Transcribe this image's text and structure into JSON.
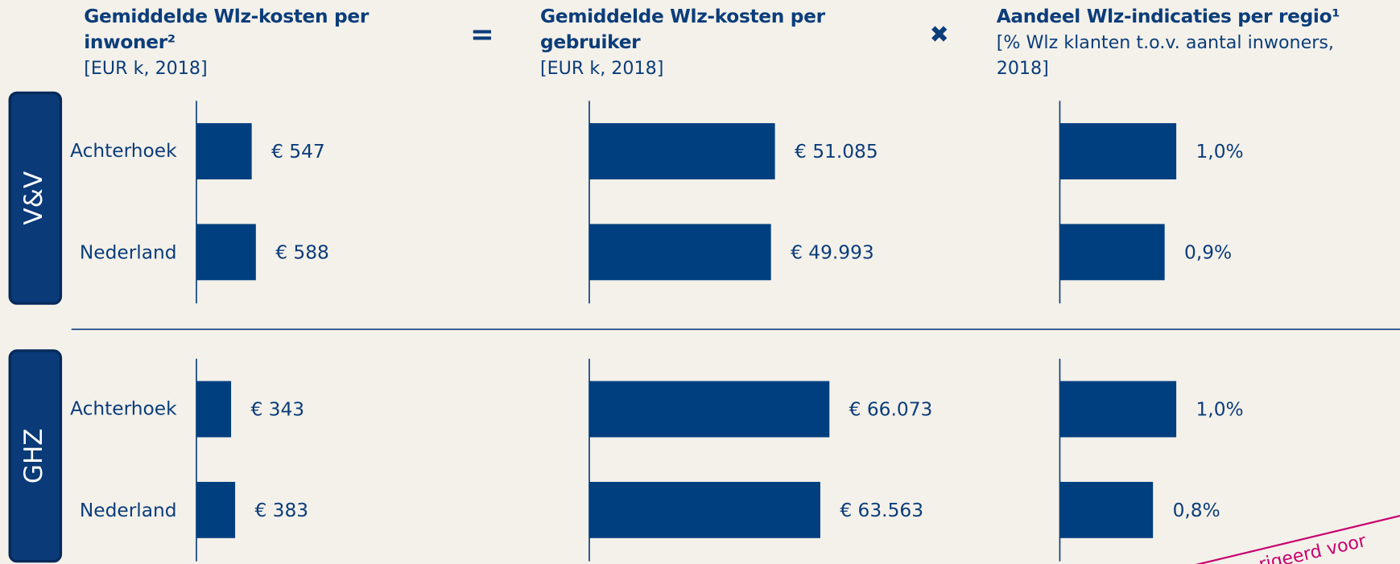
{
  "columns": [
    {
      "title": "Gemiddelde Wlz-kosten per inwoner²",
      "subtitle": "[EUR k, 2018]"
    },
    {
      "title": "Gemiddelde Wlz-kosten per gebruiker",
      "subtitle": "[EUR k, 2018]"
    },
    {
      "title": "Aandeel Wlz-indicaties per regio¹",
      "subtitle": "[% Wlz klanten t.o.v. aantal inwoners, 2018]"
    }
  ],
  "operators": [
    "=",
    "✖"
  ],
  "rows": [
    {
      "label": "V&V",
      "categories": [
        "Achterhoek",
        "Nederland"
      ]
    },
    {
      "label": "GHZ",
      "categories": [
        "Achterhoek",
        "Nederland"
      ]
    }
  ],
  "stamp": "rigeerd voor",
  "chart_data": [
    {
      "type": "bar",
      "values": [
        547,
        588
      ],
      "value_labels": [
        "€ 547",
        "€ 588"
      ],
      "xlim": [
        0,
        2650
      ],
      "color": "#003f7f"
    },
    {
      "type": "bar",
      "values": [
        51085,
        49993
      ],
      "value_labels": [
        "€ 51.085",
        "€ 49.993"
      ],
      "xlim": [
        0,
        73700
      ],
      "color": "#003f7f"
    },
    {
      "type": "bar",
      "values": [
        1.0,
        0.9
      ],
      "value_labels": [
        "1,0%",
        "0,9%"
      ],
      "xlim": [
        0,
        2.3
      ],
      "color": "#003f7f"
    },
    {
      "type": "bar",
      "values": [
        343,
        383
      ],
      "value_labels": [
        "€ 343",
        "€ 383"
      ],
      "xlim": [
        0,
        2650
      ],
      "color": "#003f7f"
    },
    {
      "type": "bar",
      "values": [
        66073,
        63563
      ],
      "value_labels": [
        "€ 66.073",
        "€ 63.563"
      ],
      "xlim": [
        0,
        73700
      ],
      "color": "#003f7f"
    },
    {
      "type": "bar",
      "values": [
        1.0,
        0.8
      ],
      "value_labels": [
        "1,0%",
        "0,8%"
      ],
      "xlim": [
        0,
        2.3
      ],
      "color": "#003f7f"
    }
  ]
}
